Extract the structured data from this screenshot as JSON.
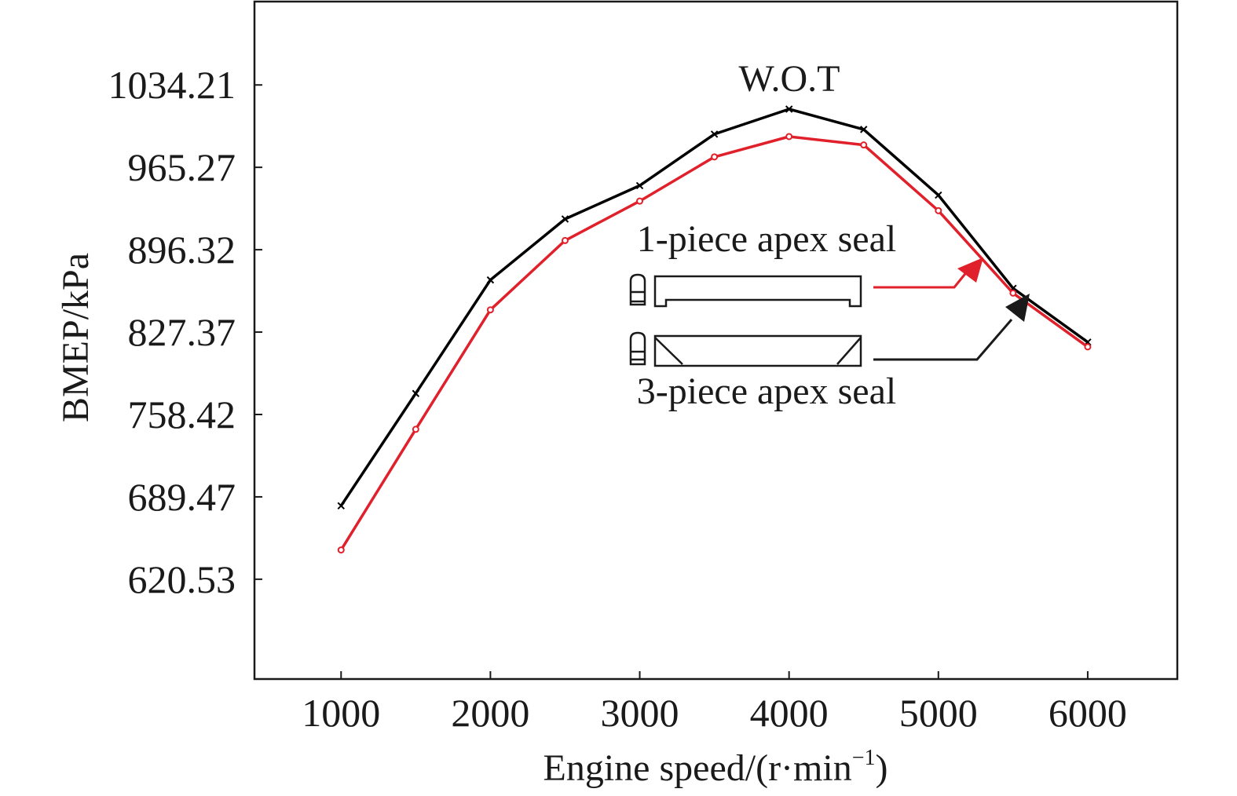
{
  "chart_data": {
    "type": "line",
    "title": "",
    "xlabel": "Engine speed/(r·min",
    "xlabel_sup": "−1",
    "xlabel_close": ")",
    "ylabel": "BMEP/kPa",
    "xlim": [
      420,
      6600
    ],
    "ylim": [
      537,
      1104
    ],
    "x_ticks": [
      1000,
      2000,
      3000,
      4000,
      5000,
      6000
    ],
    "x_tick_labels": [
      "1000",
      "2000",
      "3000",
      "4000",
      "5000",
      "6000"
    ],
    "y_ticks": [
      620.53,
      689.47,
      758.42,
      827.37,
      896.32,
      965.27,
      1034.21
    ],
    "y_tick_labels": [
      "620.53",
      "689.47",
      "758.42",
      "827.37",
      "896.32",
      "965.27",
      "1034.21"
    ],
    "grid": false,
    "series": [
      {
        "name": "3-piece apex seal",
        "color": "#000000",
        "marker": "x",
        "x": [
          1000,
          1500,
          2000,
          2500,
          3000,
          3500,
          4000,
          4500,
          5000,
          5500,
          6000
        ],
        "y": [
          682,
          776,
          871,
          922,
          950,
          993,
          1014,
          997,
          942,
          864,
          819
        ]
      },
      {
        "name": "1-piece apex seal",
        "color": "#e0202a",
        "marker": "o",
        "x": [
          1000,
          1500,
          2000,
          2500,
          3000,
          3500,
          4000,
          4500,
          5000,
          5500,
          6000
        ],
        "y": [
          645,
          746,
          846,
          904,
          937,
          974,
          991,
          984,
          929,
          860,
          815
        ]
      }
    ],
    "annotations": {
      "wot": "W.O.T",
      "one_piece": "1-piece apex seal",
      "three_piece": "3-piece apex seal"
    }
  }
}
